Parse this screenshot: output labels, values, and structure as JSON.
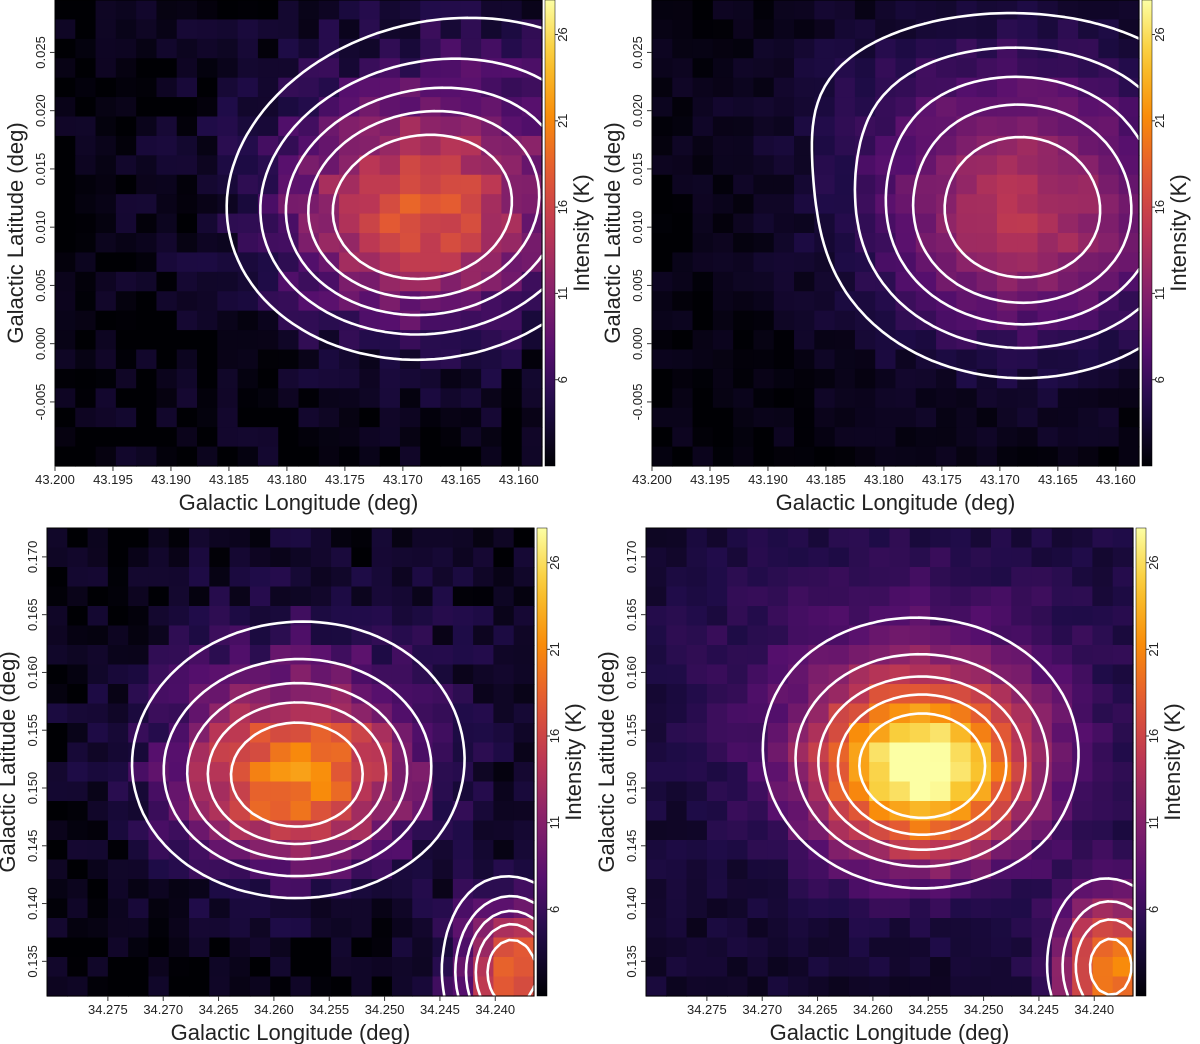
{
  "chart_data": [
    {
      "type": "heatmap",
      "panel": "top-left",
      "xlabel": "Galactic Longitude (deg)",
      "ylabel": "Galactic Latitude (deg)",
      "colorbar_label": "Intensity (K)",
      "colorbar_ticks": [
        "6",
        "11",
        "16",
        "21",
        "26"
      ],
      "colorbar_range": [
        1,
        28
      ],
      "colormap": "inferno",
      "contour_color": "#ffffff",
      "xlim": [
        43.2,
        43.158
      ],
      "ylim": [
        -0.0105,
        0.0295
      ],
      "xticks": [
        43.2,
        43.195,
        43.19,
        43.185,
        43.18,
        43.175,
        43.17,
        43.165,
        43.16
      ],
      "xtick_labels": [
        "43.200",
        "43.195",
        "43.190",
        "43.185",
        "43.180",
        "43.175",
        "43.170",
        "43.165",
        "43.160"
      ],
      "yticks": [
        -0.005,
        0.0,
        0.005,
        0.01,
        0.015,
        0.02,
        0.025
      ],
      "ytick_labels": [
        "-0.005",
        "0.000",
        "0.005",
        "0.010",
        "0.015",
        "0.020",
        "0.025"
      ],
      "peaks": [
        {
          "x": 43.169,
          "y": 0.0105,
          "amp": 13.5,
          "sx": 0.0085,
          "sy": 0.0065
        },
        {
          "x": 43.163,
          "y": 0.019,
          "amp": 4.5,
          "sx": 0.012,
          "sy": 0.008
        }
      ],
      "background": 1.5,
      "noise": 1.8
    },
    {
      "type": "heatmap",
      "panel": "top-right",
      "xlabel": "Galactic Longitude (deg)",
      "ylabel": "Galactic Latitude (deg)",
      "colorbar_label": "Intensity (K)",
      "colorbar_ticks": [
        "6",
        "11",
        "16",
        "21",
        "26"
      ],
      "colorbar_range": [
        1,
        28
      ],
      "colormap": "inferno",
      "contour_color": "#ffffff",
      "xlim": [
        43.2,
        43.158
      ],
      "ylim": [
        -0.0105,
        0.0295
      ],
      "xticks": [
        43.2,
        43.195,
        43.19,
        43.185,
        43.18,
        43.175,
        43.17,
        43.165,
        43.16
      ],
      "xtick_labels": [
        "43.200",
        "43.195",
        "43.190",
        "43.185",
        "43.180",
        "43.175",
        "43.170",
        "43.165",
        "43.160"
      ],
      "yticks": [
        -0.005,
        0.0,
        0.005,
        0.01,
        0.015,
        0.02,
        0.025
      ],
      "ytick_labels": [
        "-0.005",
        "0.000",
        "0.005",
        "0.010",
        "0.015",
        "0.020",
        "0.025"
      ],
      "peaks": [
        {
          "x": 43.168,
          "y": 0.0105,
          "amp": 12.0,
          "sx": 0.0095,
          "sy": 0.0075
        },
        {
          "x": 43.17,
          "y": 0.022,
          "amp": 3.0,
          "sx": 0.014,
          "sy": 0.006
        }
      ],
      "background": 1.5,
      "noise": 1.0
    },
    {
      "type": "heatmap",
      "panel": "bottom-left",
      "xlabel": "Galactic Longitude (deg)",
      "ylabel": "Galactic Latitude (deg)",
      "colorbar_label": "Intensity (K)",
      "colorbar_ticks": [
        "6",
        "11",
        "16",
        "21",
        "26"
      ],
      "colorbar_range": [
        1,
        28
      ],
      "colormap": "inferno",
      "contour_color": "#ffffff",
      "xlim": [
        34.2805,
        34.2365
      ],
      "ylim": [
        0.132,
        0.1725
      ],
      "xticks": [
        34.275,
        34.27,
        34.265,
        34.26,
        34.255,
        34.25,
        34.245,
        34.24
      ],
      "xtick_labels": [
        "34.275",
        "34.270",
        "34.265",
        "34.260",
        "34.255",
        "34.250",
        "34.245",
        "34.240"
      ],
      "yticks": [
        0.135,
        0.14,
        0.145,
        0.15,
        0.155,
        0.16,
        0.165,
        0.17
      ],
      "ytick_labels": [
        "0.135",
        "0.140",
        "0.145",
        "0.150",
        "0.155",
        "0.160",
        "0.165",
        "0.170"
      ],
      "peaks": [
        {
          "x": 34.258,
          "y": 0.1505,
          "amp": 17.0,
          "sx": 0.0075,
          "sy": 0.0055
        },
        {
          "x": 34.2385,
          "y": 0.134,
          "amp": 18.0,
          "sx": 0.0035,
          "sy": 0.0045
        },
        {
          "x": 34.257,
          "y": 0.158,
          "amp": 4.0,
          "sx": 0.012,
          "sy": 0.008
        }
      ],
      "background": 1.5,
      "noise": 1.8
    },
    {
      "type": "heatmap",
      "panel": "bottom-right",
      "xlabel": "Galactic Longitude (deg)",
      "ylabel": "Galactic Latitude (deg)",
      "colorbar_label": "Intensity (K)",
      "colorbar_ticks": [
        "6",
        "11",
        "16",
        "21",
        "26"
      ],
      "colorbar_range": [
        1,
        28
      ],
      "colormap": "inferno",
      "contour_color": "#ffffff",
      "xlim": [
        34.2805,
        34.2365
      ],
      "ylim": [
        0.132,
        0.1725
      ],
      "xticks": [
        34.275,
        34.27,
        34.265,
        34.26,
        34.255,
        34.25,
        34.245,
        34.24
      ],
      "xtick_labels": [
        "34.275",
        "34.270",
        "34.265",
        "34.260",
        "34.255",
        "34.250",
        "34.245",
        "34.240"
      ],
      "yticks": [
        0.135,
        0.14,
        0.145,
        0.15,
        0.155,
        0.16,
        0.165,
        0.17
      ],
      "ytick_labels": [
        "0.135",
        "0.140",
        "0.145",
        "0.150",
        "0.155",
        "0.160",
        "0.165",
        "0.170"
      ],
      "peaks": [
        {
          "x": 34.2555,
          "y": 0.1515,
          "amp": 24.0,
          "sx": 0.007,
          "sy": 0.0055
        },
        {
          "x": 34.2385,
          "y": 0.1345,
          "amp": 18.0,
          "sx": 0.0035,
          "sy": 0.0045
        },
        {
          "x": 34.257,
          "y": 0.16,
          "amp": 4.0,
          "sx": 0.015,
          "sy": 0.009
        }
      ],
      "background": 3.0,
      "noise": 1.0
    }
  ]
}
